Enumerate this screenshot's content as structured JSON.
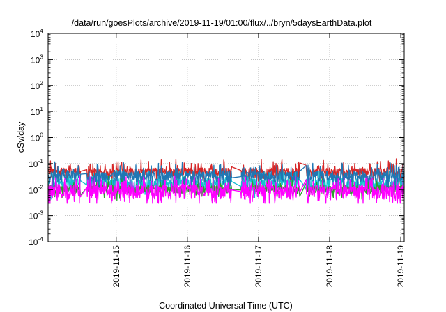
{
  "chart_data": {
    "type": "line",
    "title": "/data/run/goesPlots/archive/2019-11-19/01:00/flux/../bryn/5daysEarthData.plot",
    "xlabel": "Coordinated Universal Time (UTC)",
    "ylabel": "cSv/day",
    "y_scale": "log",
    "ylim": [
      0.0001,
      10000
    ],
    "xlim": [
      "2019-11-14 01:00",
      "2019-11-19 01:10"
    ],
    "grid": true,
    "legend": "none",
    "x_ticks": [
      {
        "value": "2019-11-15 00:00",
        "label": "2019-11-15"
      },
      {
        "value": "2019-11-16 00:00",
        "label": "2019-11-16"
      },
      {
        "value": "2019-11-17 00:00",
        "label": "2019-11-17"
      },
      {
        "value": "2019-11-18 00:00",
        "label": "2019-11-18"
      },
      {
        "value": "2019-11-19 00:00",
        "label": "2019-11-19"
      }
    ],
    "y_ticks": [
      {
        "value": 0.0001,
        "base": "10",
        "exp": "-4"
      },
      {
        "value": 0.001,
        "base": "10",
        "exp": "-3"
      },
      {
        "value": 0.01,
        "base": "10",
        "exp": "-2"
      },
      {
        "value": 0.1,
        "base": "10",
        "exp": "-1"
      },
      {
        "value": 1,
        "base": "10",
        "exp": "0"
      },
      {
        "value": 10,
        "base": "10",
        "exp": "1"
      },
      {
        "value": 100,
        "base": "10",
        "exp": "2"
      },
      {
        "value": 1000,
        "base": "10",
        "exp": "3"
      },
      {
        "value": 10000,
        "base": "10",
        "exp": "4"
      }
    ],
    "series": [
      {
        "color": "#d62728",
        "base": 0.05,
        "spread": 0.35,
        "spikes": 0.2
      },
      {
        "color": "#17becf",
        "base": 0.018,
        "spread": 0.5,
        "spikes": 0.15
      },
      {
        "color": "#2ca02c",
        "base": 0.011,
        "spread": 0.35,
        "spikes": 0.1
      },
      {
        "color": "#1f77b4",
        "base": 0.035,
        "spread": 0.45,
        "spikes": 0.2
      },
      {
        "color": "#ff00ff",
        "base": 0.0095,
        "spread": 0.55,
        "spikes": 0.35
      }
    ],
    "gaps": [
      {
        "start": "2019-11-14 12:00",
        "end": "2019-11-14 14:00"
      },
      {
        "start": "2019-11-16 15:00",
        "end": "2019-11-16 18:00"
      },
      {
        "start": "2019-11-17 14:00",
        "end": "2019-11-17 16:00"
      }
    ]
  }
}
